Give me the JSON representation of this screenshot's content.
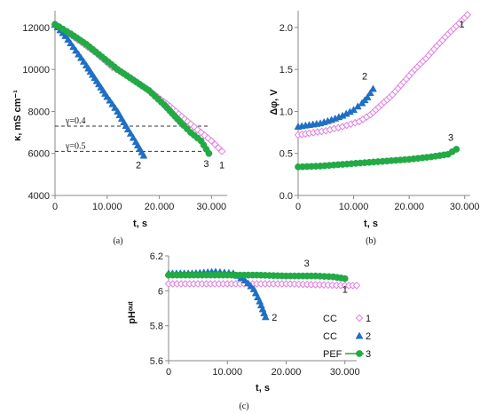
{
  "colors": {
    "series1": "#e27fe0",
    "series2": "#1f6fc5",
    "series3": "#22aa44",
    "axis": "#888888"
  },
  "chart_data": [
    {
      "panel_label": "(a)",
      "type": "scatter",
      "xlabel": "t, s",
      "ylabel": "κ, mS cm⁻¹",
      "xlim": [
        0,
        33000
      ],
      "ylim": [
        4000,
        12800
      ],
      "xticks": [
        {
          "v": 0,
          "label": "0"
        },
        {
          "v": 10000,
          "label": "10.000"
        },
        {
          "v": 20000,
          "label": "20.000"
        },
        {
          "v": 30000,
          "label": "30.000"
        }
      ],
      "yticks": [
        {
          "v": 4000,
          "label": "4000"
        },
        {
          "v": 6000,
          "label": "6000"
        },
        {
          "v": 8000,
          "label": "8000"
        },
        {
          "v": 10000,
          "label": "10000"
        },
        {
          "v": 12000,
          "label": "12000"
        }
      ],
      "reference_lines": [
        {
          "y": 7300,
          "label": "γ=0.4"
        },
        {
          "y": 6100,
          "label": "γ=0.5"
        }
      ],
      "series": [
        {
          "id": "1",
          "marker": "diamond",
          "points": [
            [
              0,
              12150
            ],
            [
              5000,
              11300
            ],
            [
              8000,
              10750
            ],
            [
              11000,
              10100
            ],
            [
              14000,
              9700
            ],
            [
              18000,
              9000
            ],
            [
              22000,
              8250
            ],
            [
              26000,
              7400
            ],
            [
              28000,
              7000
            ],
            [
              30000,
              6600
            ],
            [
              32000,
              6100
            ]
          ]
        },
        {
          "id": "2",
          "marker": "triangle",
          "points": [
            [
              0,
              12150
            ],
            [
              2000,
              11600
            ],
            [
              4000,
              10900
            ],
            [
              6000,
              10200
            ],
            [
              8000,
              9450
            ],
            [
              10000,
              8700
            ],
            [
              12000,
              8000
            ],
            [
              14000,
              7150
            ],
            [
              15500,
              6550
            ],
            [
              17000,
              5900
            ]
          ]
        },
        {
          "id": "3",
          "marker": "circle",
          "points": [
            [
              0,
              12150
            ],
            [
              3000,
              11700
            ],
            [
              6000,
              11200
            ],
            [
              9000,
              10600
            ],
            [
              12000,
              10000
            ],
            [
              15000,
              9500
            ],
            [
              18000,
              9000
            ],
            [
              21000,
              8300
            ],
            [
              24000,
              7500
            ],
            [
              26000,
              7000
            ],
            [
              28000,
              6600
            ],
            [
              29500,
              6000
            ]
          ]
        }
      ],
      "curve_labels": [
        {
          "text": "1",
          "x": 32000,
          "y": 5300
        },
        {
          "text": "2",
          "x": 16000,
          "y": 5300
        },
        {
          "text": "3",
          "x": 29000,
          "y": 5350
        }
      ]
    },
    {
      "panel_label": "(b)",
      "type": "scatter",
      "xlabel": "t, s",
      "ylabel": "Δφ, V",
      "xlim": [
        0,
        31000
      ],
      "ylim": [
        0,
        2.2
      ],
      "xticks": [
        {
          "v": 0,
          "label": "0"
        },
        {
          "v": 10000,
          "label": "10.000"
        },
        {
          "v": 20000,
          "label": "20.000"
        },
        {
          "v": 30000,
          "label": "30.000"
        }
      ],
      "yticks": [
        {
          "v": 0,
          "label": "0.0"
        },
        {
          "v": 0.5,
          "label": "0.5"
        },
        {
          "v": 1.0,
          "label": "1.0"
        },
        {
          "v": 1.5,
          "label": "1.5"
        },
        {
          "v": 2.0,
          "label": "2.0"
        }
      ],
      "series": [
        {
          "id": "1",
          "marker": "diamond",
          "points": [
            [
              0,
              0.72
            ],
            [
              2000,
              0.74
            ],
            [
              5000,
              0.77
            ],
            [
              8000,
              0.82
            ],
            [
              11000,
              0.88
            ],
            [
              13000,
              0.96
            ],
            [
              15000,
              1.08
            ],
            [
              17000,
              1.2
            ],
            [
              19000,
              1.35
            ],
            [
              21000,
              1.5
            ],
            [
              23000,
              1.63
            ],
            [
              25000,
              1.78
            ],
            [
              27000,
              1.92
            ],
            [
              29000,
              2.05
            ],
            [
              30500,
              2.15
            ]
          ]
        },
        {
          "id": "2",
          "marker": "triangle",
          "points": [
            [
              0,
              0.82
            ],
            [
              2000,
              0.84
            ],
            [
              4000,
              0.86
            ],
            [
              6000,
              0.9
            ],
            [
              8000,
              0.95
            ],
            [
              10000,
              1.02
            ],
            [
              11500,
              1.1
            ],
            [
              12500,
              1.17
            ],
            [
              13500,
              1.27
            ]
          ]
        },
        {
          "id": "3",
          "marker": "circle",
          "points": [
            [
              0,
              0.34
            ],
            [
              4000,
              0.35
            ],
            [
              8000,
              0.37
            ],
            [
              12000,
              0.39
            ],
            [
              16000,
              0.41
            ],
            [
              20000,
              0.43
            ],
            [
              24000,
              0.46
            ],
            [
              27000,
              0.49
            ],
            [
              28500,
              0.55
            ]
          ]
        }
      ],
      "curve_labels": [
        {
          "text": "1",
          "x": 29500,
          "y": 2.0
        },
        {
          "text": "2",
          "x": 12000,
          "y": 1.38
        },
        {
          "text": "3",
          "x": 27500,
          "y": 0.65
        }
      ]
    },
    {
      "panel_label": "(c)",
      "type": "scatter",
      "xlabel": "t, s",
      "ylabel": "pHᵒᵘᵗ",
      "xlim": [
        0,
        32000
      ],
      "ylim": [
        5.6,
        6.2
      ],
      "xticks": [
        {
          "v": 0,
          "label": "0"
        },
        {
          "v": 10000,
          "label": "10.000"
        },
        {
          "v": 20000,
          "label": "20.000"
        },
        {
          "v": 30000,
          "label": "30.000"
        }
      ],
      "yticks": [
        {
          "v": 5.6,
          "label": "5.6"
        },
        {
          "v": 5.8,
          "label": "5.8"
        },
        {
          "v": 6.0,
          "label": "6"
        },
        {
          "v": 6.2,
          "label": "6.2"
        }
      ],
      "series": [
        {
          "id": "1",
          "marker": "diamond",
          "points": [
            [
              0,
              6.04
            ],
            [
              5000,
              6.04
            ],
            [
              10000,
              6.04
            ],
            [
              15000,
              6.04
            ],
            [
              20000,
              6.04
            ],
            [
              25000,
              6.035
            ],
            [
              30000,
              6.03
            ],
            [
              32000,
              6.03
            ]
          ]
        },
        {
          "id": "2",
          "marker": "triangle",
          "points": [
            [
              0,
              6.1
            ],
            [
              4000,
              6.1
            ],
            [
              8000,
              6.11
            ],
            [
              11000,
              6.1
            ],
            [
              13000,
              6.06
            ],
            [
              14500,
              6.01
            ],
            [
              15500,
              5.94
            ],
            [
              16500,
              5.85
            ]
          ]
        },
        {
          "id": "3",
          "marker": "circle",
          "points": [
            [
              0,
              6.09
            ],
            [
              5000,
              6.09
            ],
            [
              10000,
              6.09
            ],
            [
              15000,
              6.09
            ],
            [
              20000,
              6.085
            ],
            [
              25000,
              6.085
            ],
            [
              28000,
              6.08
            ],
            [
              30000,
              6.07
            ]
          ]
        }
      ],
      "curve_labels": [
        {
          "text": "1",
          "x": 30000,
          "y": 5.99
        },
        {
          "text": "2",
          "x": 18000,
          "y": 5.83
        },
        {
          "text": "3",
          "x": 23500,
          "y": 6.14
        }
      ],
      "legend": [
        {
          "label": "CC",
          "series": "1"
        },
        {
          "label": "CC",
          "series": "2"
        },
        {
          "label": "PEF",
          "series": "3"
        }
      ]
    }
  ]
}
